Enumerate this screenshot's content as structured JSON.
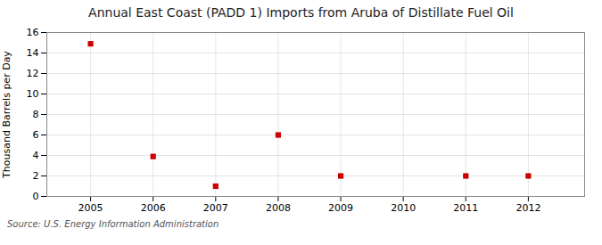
{
  "chart_data": {
    "type": "scatter",
    "title": "Annual East Coast (PADD 1) Imports from Aruba of Distillate Fuel Oil",
    "ylabel": "Thousand Barrels per Day",
    "source": "Source: U.S. Energy Information Administration",
    "x": [
      2005,
      2006,
      2007,
      2008,
      2009,
      2010,
      2011,
      2012
    ],
    "values": [
      14.9,
      3.9,
      1.0,
      6.0,
      2.0,
      null,
      2.0,
      2.0
    ],
    "color": "#cc0000",
    "marker": "square",
    "xlim": [
      2004.3,
      2012.9
    ],
    "ylim": [
      0,
      16
    ],
    "xticks": [
      2005,
      2006,
      2007,
      2008,
      2009,
      2010,
      2011,
      2012
    ],
    "yticks": [
      0,
      2,
      4,
      6,
      8,
      10,
      12,
      14,
      16
    ],
    "grid": true
  }
}
